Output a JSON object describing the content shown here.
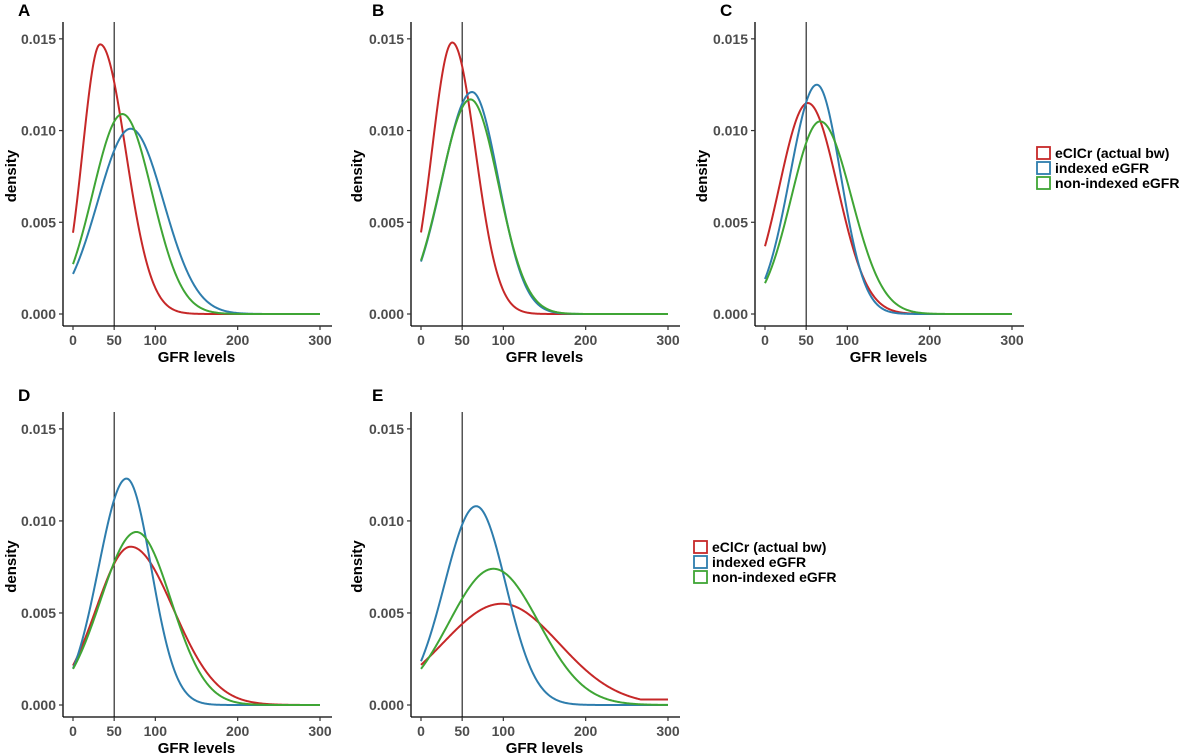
{
  "figure": {
    "legend_entries": [
      {
        "label": "eClCr (actual bw)",
        "color": "#c62828"
      },
      {
        "label": "indexed eGFR",
        "color": "#2e7dad"
      },
      {
        "label": "non-indexed eGFR",
        "color": "#3fa535"
      }
    ]
  },
  "chart_data": [
    {
      "type": "line",
      "panel": "A",
      "xlabel": "GFR levels",
      "ylabel": "density",
      "xlim": [
        0,
        300
      ],
      "ylim": [
        0,
        0.0157
      ],
      "x_ticks": [
        0,
        50,
        100,
        200,
        300
      ],
      "y_ticks": [
        0.0,
        0.005,
        0.01,
        0.015
      ],
      "y_tick_labels": [
        "0.000",
        "0.005",
        "0.010",
        "0.015"
      ],
      "reference_line_x": 50,
      "series": [
        {
          "name": "eClCr (actual bw)",
          "color": "#c62828",
          "peak_x": 33,
          "peak_y": 0.0147,
          "sd_left": 21.3,
          "sd_right": 31,
          "end_y": 0
        },
        {
          "name": "indexed eGFR",
          "color": "#2e7dad",
          "peak_x": 70,
          "peak_y": 0.0101,
          "sd_left": 40,
          "sd_right": 40,
          "end_y": 0
        },
        {
          "name": "non-indexed eGFR",
          "color": "#3fa535",
          "peak_x": 60,
          "peak_y": 0.0109,
          "sd_left": 36,
          "sd_right": 36,
          "end_y": 0
        }
      ]
    },
    {
      "type": "line",
      "panel": "B",
      "xlabel": "GFR levels",
      "ylabel": "density",
      "xlim": [
        0,
        300
      ],
      "ylim": [
        0,
        0.0157
      ],
      "x_ticks": [
        0,
        50,
        100,
        200,
        300
      ],
      "y_ticks": [
        0.0,
        0.005,
        0.01,
        0.015
      ],
      "y_tick_labels": [
        "0.000",
        "0.005",
        "0.010",
        "0.015"
      ],
      "reference_line_x": 50,
      "series": [
        {
          "name": "eClCr (actual bw)",
          "color": "#c62828",
          "peak_x": 38,
          "peak_y": 0.0148,
          "sd_left": 24.5,
          "sd_right": 28,
          "end_y": 0
        },
        {
          "name": "indexed eGFR",
          "color": "#2e7dad",
          "peak_x": 62,
          "peak_y": 0.0121,
          "sd_left": 36.5,
          "sd_right": 32,
          "end_y": 0
        },
        {
          "name": "non-indexed eGFR",
          "color": "#3fa535",
          "peak_x": 60,
          "peak_y": 0.0117,
          "sd_left": 36,
          "sd_right": 34,
          "end_y": 0
        }
      ]
    },
    {
      "type": "line",
      "panel": "C",
      "xlabel": "GFR levels",
      "ylabel": "density",
      "xlim": [
        0,
        300
      ],
      "ylim": [
        0,
        0.0157
      ],
      "x_ticks": [
        0,
        50,
        100,
        200,
        300
      ],
      "y_ticks": [
        0.0,
        0.005,
        0.01,
        0.015
      ],
      "y_tick_labels": [
        "0.000",
        "0.005",
        "0.010",
        "0.015"
      ],
      "reference_line_x": 50,
      "series": [
        {
          "name": "eClCr (actual bw)",
          "color": "#c62828",
          "peak_x": 52,
          "peak_y": 0.0115,
          "sd_left": 34.5,
          "sd_right": 36,
          "end_y": 0
        },
        {
          "name": "indexed eGFR",
          "color": "#2e7dad",
          "peak_x": 63,
          "peak_y": 0.0125,
          "sd_left": 32.5,
          "sd_right": 29,
          "end_y": 0
        },
        {
          "name": "non-indexed eGFR",
          "color": "#3fa535",
          "peak_x": 67,
          "peak_y": 0.0105,
          "sd_left": 35,
          "sd_right": 38,
          "end_y": 0
        }
      ]
    },
    {
      "type": "line",
      "panel": "D",
      "xlabel": "GFR levels",
      "ylabel": "density",
      "xlim": [
        0,
        300
      ],
      "ylim": [
        0,
        0.0157
      ],
      "x_ticks": [
        0,
        50,
        100,
        200,
        300
      ],
      "y_ticks": [
        0.0,
        0.005,
        0.01,
        0.015
      ],
      "y_tick_labels": [
        "0.000",
        "0.005",
        "0.010",
        "0.015"
      ],
      "reference_line_x": 50,
      "series": [
        {
          "name": "eClCr (actual bw)",
          "color": "#c62828",
          "peak_x": 70,
          "peak_y": 0.0086,
          "sd_left": 42,
          "sd_right": 52,
          "end_y": 0
        },
        {
          "name": "indexed eGFR",
          "color": "#2e7dad",
          "peak_x": 65,
          "peak_y": 0.0123,
          "sd_left": 34,
          "sd_right": 30,
          "end_y": 0
        },
        {
          "name": "non-indexed eGFR",
          "color": "#3fa535",
          "peak_x": 77,
          "peak_y": 0.0094,
          "sd_left": 43.5,
          "sd_right": 42,
          "end_y": 0
        }
      ]
    },
    {
      "type": "line",
      "panel": "E",
      "xlabel": "GFR levels",
      "ylabel": "density",
      "xlim": [
        0,
        300
      ],
      "ylim": [
        0,
        0.0157
      ],
      "x_ticks": [
        0,
        50,
        100,
        200,
        300
      ],
      "y_ticks": [
        0.0,
        0.005,
        0.01,
        0.015
      ],
      "y_tick_labels": [
        "0.000",
        "0.005",
        "0.010",
        "0.015"
      ],
      "reference_line_x": 50,
      "series": [
        {
          "name": "eClCr (actual bw)",
          "color": "#c62828",
          "peak_x": 98,
          "peak_y": 0.0055,
          "sd_left": 72,
          "sd_right": 70,
          "end_y": 0.0003
        },
        {
          "name": "indexed eGFR",
          "color": "#2e7dad",
          "peak_x": 67,
          "peak_y": 0.0108,
          "sd_left": 38.5,
          "sd_right": 36,
          "end_y": 0
        },
        {
          "name": "non-indexed eGFR",
          "color": "#3fa535",
          "peak_x": 88,
          "peak_y": 0.0074,
          "sd_left": 54,
          "sd_right": 55,
          "end_y": 0
        }
      ]
    }
  ]
}
